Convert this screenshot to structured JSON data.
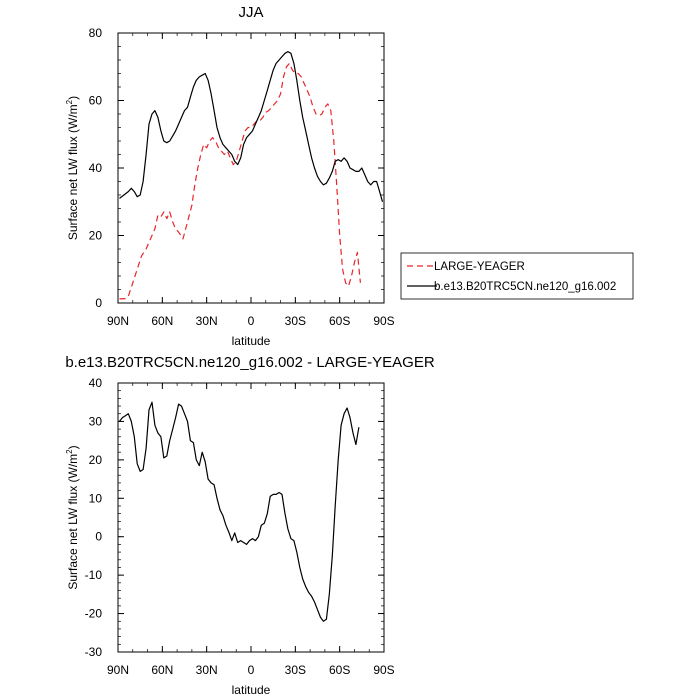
{
  "chart_data": [
    {
      "type": "line",
      "title": "JJA",
      "xlabel": "latitude",
      "ylabel": "Surface net LW flux (W/m",
      "ylabel_sup": "2",
      "ylabel_close": ")",
      "xlim": [
        -90,
        90
      ],
      "ylim": [
        0,
        80
      ],
      "xticks": [
        -90,
        -60,
        -30,
        0,
        30,
        60,
        90
      ],
      "xtick_labels": [
        "90N",
        "60N",
        "30N",
        "0",
        "30S",
        "60S",
        "90S"
      ],
      "yticks": [
        0,
        20,
        40,
        60,
        80
      ],
      "ytick_labels": [
        "0",
        "20",
        "40",
        "60",
        "80"
      ],
      "grid": false,
      "legend": "right",
      "series": [
        {
          "name": "LARGE-YEAGER",
          "color": "#e8252b",
          "dash": "dashed",
          "x": [
            -89,
            -85,
            -83,
            -80,
            -77,
            -74,
            -71,
            -69,
            -67,
            -65,
            -63,
            -61,
            -59,
            -57,
            -55,
            -53,
            -51,
            -49,
            -46,
            -43,
            -40,
            -38,
            -36,
            -34,
            -32,
            -30,
            -28,
            -26,
            -24,
            -22,
            -20,
            -18,
            -16,
            -14,
            -12,
            -10,
            -8,
            -6,
            -4,
            -2,
            0,
            2,
            4,
            6,
            8,
            10,
            12,
            14,
            16,
            18,
            20,
            22,
            24,
            26,
            28,
            30,
            32,
            34,
            36,
            38,
            40,
            42,
            44,
            46,
            48,
            50,
            52,
            54,
            56,
            58,
            60,
            62,
            64,
            66,
            68,
            70,
            72,
            74,
            76,
            78
          ],
          "y": [
            1.2,
            1.3,
            2,
            6,
            10,
            14,
            16,
            18,
            20,
            22,
            26,
            25.5,
            27,
            25,
            27,
            24,
            22,
            21,
            19,
            24,
            29,
            35,
            40,
            44,
            47,
            46,
            48,
            49,
            48,
            46,
            45,
            44,
            45,
            43,
            41,
            42,
            45,
            48,
            51,
            52,
            52,
            53,
            54,
            54,
            55,
            56.5,
            57,
            58,
            59,
            60,
            62,
            67,
            70,
            71,
            69,
            68,
            68,
            67,
            65,
            63,
            61,
            58,
            56,
            55.5,
            56,
            58,
            59,
            57,
            48,
            35,
            20,
            10,
            6,
            5,
            8,
            12,
            15,
            6,
            null,
            null
          ]
        },
        {
          "name": "b.e13.B20TRC5CN.ne120_g16.002",
          "color": "#000000",
          "dash": "solid",
          "x": [
            -89,
            -86,
            -83,
            -81,
            -79,
            -77,
            -75,
            -73,
            -71,
            -69,
            -67,
            -65,
            -63,
            -61,
            -59,
            -57,
            -55,
            -53,
            -51,
            -49,
            -47,
            -45,
            -43,
            -41,
            -39,
            -37,
            -35,
            -33,
            -31,
            -29,
            -27,
            -25,
            -23,
            -21,
            -19,
            -17,
            -15,
            -13,
            -11,
            -9,
            -7,
            -5,
            -3,
            -1,
            1,
            3,
            5,
            7,
            9,
            11,
            13,
            15,
            17,
            19,
            21,
            23,
            25,
            27,
            29,
            31,
            33,
            35,
            37,
            39,
            41,
            43,
            45,
            47,
            49,
            51,
            53,
            55,
            57,
            59,
            61,
            63,
            65,
            67,
            69,
            71,
            73,
            75,
            77,
            79,
            81,
            83,
            85,
            87,
            89
          ],
          "y": [
            31,
            32,
            33,
            34,
            33,
            31.5,
            32,
            36,
            44,
            53,
            56,
            57,
            55,
            51,
            48,
            47.5,
            48,
            49.5,
            51,
            53,
            55,
            57,
            58,
            61,
            64,
            66,
            67,
            67.5,
            68,
            66,
            62,
            57,
            52,
            49,
            47,
            46,
            45,
            44,
            42,
            41,
            43,
            47,
            49,
            50,
            51,
            53,
            55,
            57,
            60,
            63,
            66,
            69,
            71,
            72,
            73,
            74,
            74.5,
            74,
            71,
            66,
            60,
            55,
            51,
            47,
            43,
            40,
            37.5,
            36,
            35,
            35.5,
            37,
            39,
            42,
            42.5,
            42,
            43,
            42,
            40,
            39.5,
            39,
            39,
            40,
            38,
            36,
            35,
            36,
            36,
            33,
            30
          ]
        }
      ]
    },
    {
      "type": "line",
      "title": "b.e13.B20TRC5CN.ne120_g16.002 - LARGE-YEAGER",
      "xlabel": "latitude",
      "ylabel": "Surface net LW flux (W/m",
      "ylabel_sup": "2",
      "ylabel_close": ")",
      "xlim": [
        -90,
        90
      ],
      "ylim": [
        -30,
        40
      ],
      "xticks": [
        -90,
        -60,
        -30,
        0,
        30,
        60,
        90
      ],
      "xtick_labels": [
        "90N",
        "60N",
        "30N",
        "0",
        "30S",
        "60S",
        "90S"
      ],
      "yticks": [
        -30,
        -20,
        -10,
        0,
        10,
        20,
        30,
        40
      ],
      "ytick_labels": [
        "-30",
        "-20",
        "-10",
        "0",
        "10",
        "20",
        "30",
        "40"
      ],
      "grid": false,
      "series": [
        {
          "color": "#000000",
          "dash": "solid",
          "x": [
            -89,
            -87,
            -85,
            -83,
            -81,
            -79,
            -77,
            -75,
            -73,
            -71,
            -69,
            -67,
            -65,
            -63,
            -61,
            -59,
            -57,
            -55,
            -53,
            -51,
            -49,
            -47,
            -45,
            -43,
            -41,
            -39,
            -37,
            -35,
            -33,
            -31,
            -29,
            -27,
            -25,
            -23,
            -21,
            -19,
            -17,
            -15,
            -13,
            -11,
            -9,
            -7,
            -5,
            -3,
            -1,
            1,
            3,
            5,
            7,
            9,
            11,
            13,
            15,
            17,
            19,
            21,
            23,
            25,
            27,
            29,
            31,
            33,
            35,
            37,
            39,
            41,
            43,
            45,
            47,
            49,
            51,
            53,
            55,
            57,
            59,
            61,
            63,
            65,
            67,
            69,
            71,
            73,
            75,
            77,
            79
          ],
          "y": [
            30,
            31,
            31.5,
            32,
            30,
            26,
            19,
            17,
            17.5,
            23,
            33,
            35,
            29,
            27,
            26,
            20.5,
            21,
            25,
            28,
            31,
            34.5,
            34,
            32,
            30,
            25,
            24.5,
            20,
            18.5,
            22,
            19.5,
            15,
            14,
            13.5,
            10,
            7,
            5.5,
            3,
            1.2,
            -1,
            1,
            -1.5,
            -1,
            -1.5,
            -2,
            -1,
            -0.5,
            -1,
            0,
            3,
            3.5,
            6,
            10.5,
            11,
            11,
            11.5,
            11,
            6,
            2,
            -0.5,
            -1,
            -4,
            -8,
            -11,
            -13,
            -14.5,
            -15.5,
            -17,
            -19,
            -21,
            -22,
            -21.5,
            -15,
            -5,
            8,
            20,
            29,
            32,
            33.5,
            31,
            27,
            24,
            28.5,
            null,
            null,
            null
          ]
        }
      ]
    }
  ]
}
